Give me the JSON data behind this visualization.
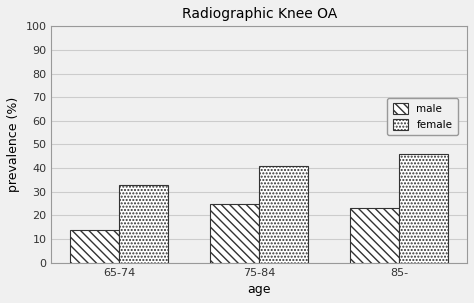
{
  "title": "Radiographic Knee OA",
  "categories": [
    "65-74",
    "75-84",
    "85-"
  ],
  "male_values": [
    14,
    25,
    23
  ],
  "female_values": [
    33,
    41,
    46
  ],
  "xlabel": "age",
  "ylabel": "prevalence (%)",
  "ylim": [
    0,
    100
  ],
  "yticks": [
    0,
    10,
    20,
    30,
    40,
    50,
    60,
    70,
    80,
    90,
    100
  ],
  "bar_width": 0.35,
  "male_hatch": "\\\\\\\\",
  "female_hatch": ".....",
  "bar_edge_color": "#333333",
  "bar_face_color": "#ffffff",
  "legend_labels": [
    "male",
    "female"
  ],
  "background_color": "#f0f0f0",
  "plot_bg_color": "#f0f0f0",
  "title_fontsize": 10,
  "axis_label_fontsize": 9,
  "tick_fontsize": 8,
  "grid_color": "#cccccc",
  "spine_color": "#999999"
}
